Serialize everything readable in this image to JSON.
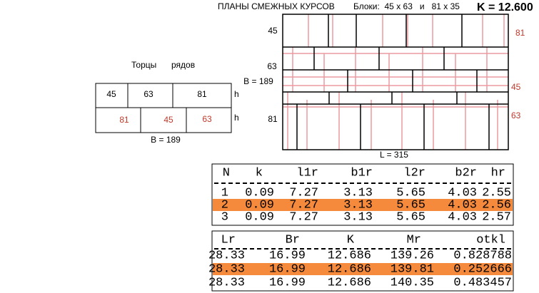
{
  "header": {
    "title": "ПЛАНЫ СМЕЖНЫХ КУРСОВ",
    "blocks": "Блоки:  45 x 63   и   81 x 35",
    "k": "K = 12.600"
  },
  "ends_diagram": {
    "title_1": "Торцы",
    "title_2": "рядов",
    "row1": [
      "45",
      "63",
      "81"
    ],
    "row2": [
      "81",
      "45",
      "63"
    ],
    "h_labels": [
      "h",
      "h"
    ],
    "width": "B = 189"
  },
  "plan_diagram": {
    "left_labels": [
      "45",
      "63",
      "81"
    ],
    "right_labels": [
      "81",
      "45",
      "63"
    ],
    "width_label": "B = 189",
    "length_label": "L = 315"
  },
  "table1": {
    "columns": [
      "N",
      "k",
      "l1r",
      "b1r",
      "l2r",
      "b2r",
      "hr"
    ],
    "rows": [
      [
        "1",
        "0.09",
        "7.27",
        "3.13",
        "5.65",
        "4.03",
        "2.55"
      ],
      [
        "2",
        "0.09",
        "7.27",
        "3.13",
        "5.65",
        "4.03",
        "2.56"
      ],
      [
        "3",
        "0.09",
        "7.27",
        "3.13",
        "5.65",
        "4.03",
        "2.57"
      ]
    ]
  },
  "table2": {
    "columns": [
      "Lr",
      "Br",
      "K",
      "Mr",
      "otkl"
    ],
    "rows": [
      [
        "28.33",
        "16.99",
        "12.686",
        "139.26",
        "0.828788"
      ],
      [
        "28.33",
        "16.99",
        "12.686",
        "139.81",
        "0.252666"
      ],
      [
        "28.33",
        "16.99",
        "12.686",
        "140.35",
        "0.483457"
      ]
    ]
  }
}
